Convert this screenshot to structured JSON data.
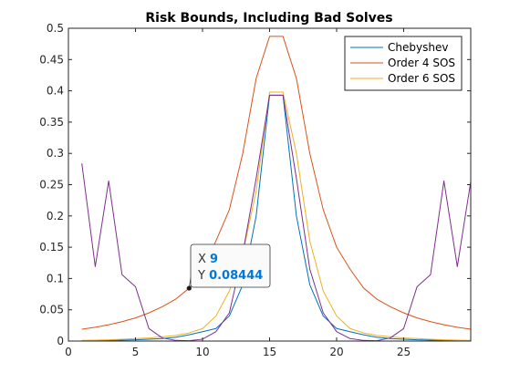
{
  "chart_data": {
    "type": "line",
    "title": "Risk Bounds, Including Bad Solves",
    "xlabel": "",
    "ylabel": "",
    "xlim": [
      0,
      30
    ],
    "ylim": [
      0,
      0.5
    ],
    "x_ticks": [
      0,
      5,
      10,
      15,
      20,
      25
    ],
    "y_ticks": [
      0,
      0.05,
      0.1,
      0.15,
      0.2,
      0.25,
      0.3,
      0.35,
      0.4,
      0.45,
      0.5
    ],
    "grid": false,
    "legend_position": "top-right",
    "x": [
      1,
      2,
      3,
      4,
      5,
      6,
      7,
      8,
      9,
      10,
      11,
      12,
      13,
      14,
      15,
      16,
      17,
      18,
      19,
      20,
      21,
      22,
      23,
      24,
      25,
      26,
      27,
      28,
      29,
      30
    ],
    "series": [
      {
        "name": "Chebyshev",
        "color": "#0072BD",
        "values": [
          0.0005,
          0.0008,
          0.001,
          0.0015,
          0.002,
          0.003,
          0.004,
          0.006,
          0.01,
          0.015,
          0.02,
          0.04,
          0.09,
          0.2,
          0.393,
          0.393,
          0.2,
          0.09,
          0.04,
          0.02,
          0.015,
          0.01,
          0.006,
          0.004,
          0.003,
          0.002,
          0.0015,
          0.001,
          0.0008,
          0.0005
        ]
      },
      {
        "name": "Order 4 SOS",
        "color": "#D95319",
        "values": [
          0.019,
          0.022,
          0.026,
          0.031,
          0.037,
          0.045,
          0.055,
          0.067,
          0.08444,
          0.115,
          0.16,
          0.21,
          0.3,
          0.42,
          0.487,
          0.487,
          0.42,
          0.3,
          0.21,
          0.15,
          0.115,
          0.085,
          0.067,
          0.055,
          0.045,
          0.037,
          0.031,
          0.026,
          0.022,
          0.019
        ]
      },
      {
        "name": "Order 6 SOS",
        "color": "#EDB120",
        "values": [
          0.001,
          0.0015,
          0.002,
          0.003,
          0.004,
          0.005,
          0.007,
          0.009,
          0.013,
          0.02,
          0.04,
          0.08,
          0.14,
          0.24,
          0.398,
          0.398,
          0.3,
          0.16,
          0.08,
          0.04,
          0.02,
          0.013,
          0.009,
          0.007,
          0.005,
          0.004,
          0.003,
          0.002,
          0.0015,
          0.001
        ]
      },
      {
        "name": "",
        "color": "#7E2F8E",
        "values": [
          0.284,
          0.119,
          0.256,
          0.106,
          0.087,
          0.02,
          0.005,
          0.001,
          0.0005,
          0.003,
          0.015,
          0.045,
          0.14,
          0.26,
          0.393,
          0.393,
          0.26,
          0.115,
          0.045,
          0.015,
          0.004,
          0.001,
          0.0005,
          0.005,
          0.02,
          0.087,
          0.106,
          0.256,
          0.119,
          0.255
        ]
      }
    ],
    "datatip": {
      "x_label": "X",
      "y_label": "Y",
      "x_value": "9",
      "y_value": "0.08444",
      "x": 9,
      "y": 0.08444
    }
  }
}
